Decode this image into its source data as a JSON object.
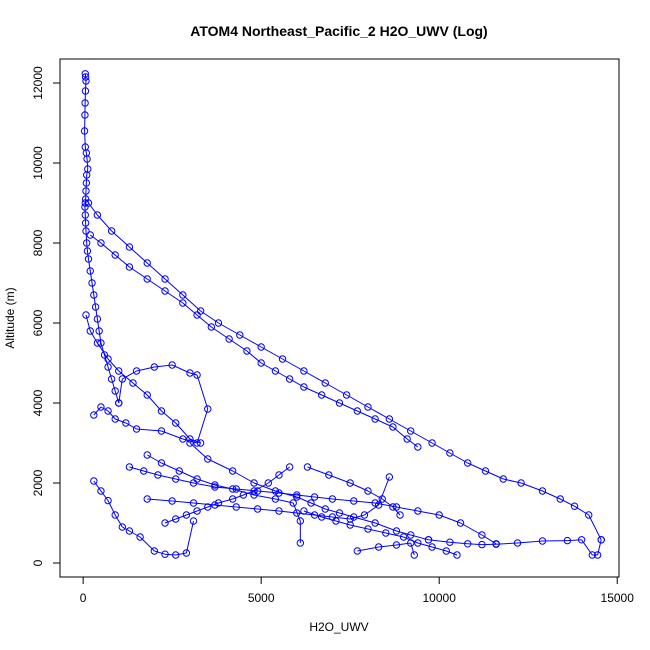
{
  "chart_data": {
    "type": "line",
    "title": "ATOM4 Northeast_Pacific_2 H2O_UWV (Log)",
    "xlabel": "H2O_UWV",
    "ylabel": "Altitude (m)",
    "xlim": [
      -650,
      15050
    ],
    "ylim": [
      -350,
      12600
    ],
    "xticks": [
      0,
      5000,
      10000,
      15000
    ],
    "xtick_labels": [
      "0",
      "5000",
      "10000",
      "15000"
    ],
    "yticks": [
      0,
      2000,
      4000,
      6000,
      8000,
      10000,
      12000
    ],
    "ytick_labels": [
      "0",
      "2000",
      "4000",
      "6000",
      "8000",
      "10000",
      "12000"
    ],
    "grid": false,
    "legend": "none",
    "marker": "open-circle",
    "line_color": "#0000ff",
    "series": [
      {
        "x": [
          60,
          70,
          80,
          65,
          55,
          50,
          40,
          60,
          90,
          110,
          130,
          100,
          90,
          80,
          70,
          60,
          50,
          60,
          70,
          80,
          100,
          120,
          150,
          200,
          250,
          300,
          350,
          400,
          450,
          500,
          600,
          700,
          800,
          900,
          1000
        ],
        "y": [
          12230,
          12150,
          12050,
          11800,
          11500,
          11200,
          10800,
          10400,
          10250,
          10100,
          9850,
          9700,
          9500,
          9300,
          9100,
          9000,
          8900,
          8700,
          8500,
          8300,
          8000,
          7800,
          7600,
          7300,
          7000,
          6700,
          6400,
          6100,
          5800,
          5500,
          5200,
          4900,
          4600,
          4300,
          4000
        ]
      },
      {
        "x": [
          1000,
          1100,
          1500,
          2000,
          2500,
          3000,
          3200,
          3500,
          3200,
          2800,
          2200,
          1500,
          1200,
          900,
          700,
          500,
          300
        ],
        "y": [
          4000,
          4600,
          4800,
          4900,
          4950,
          4750,
          4700,
          3850,
          3000,
          3100,
          3300,
          3350,
          3500,
          3600,
          3800,
          3900,
          3700
        ]
      },
      {
        "x": [
          300,
          500,
          700,
          900,
          1100,
          1300,
          1600,
          2000,
          2300,
          2600,
          2900,
          3100
        ],
        "y": [
          2050,
          1800,
          1560,
          1200,
          900,
          800,
          650,
          300,
          220,
          200,
          250,
          1050
        ]
      },
      {
        "x": [
          80,
          200,
          400,
          700,
          1000,
          1400,
          1800,
          2200,
          2600,
          3000,
          3300
        ],
        "y": [
          6200,
          5800,
          5500,
          5100,
          4800,
          4500,
          4200,
          3800,
          3500,
          3100,
          3000
        ]
      },
      {
        "x": [
          3000,
          3500,
          4200,
          4800,
          5400,
          6000,
          6400,
          6800,
          7200,
          7600,
          8200,
          8800,
          9200,
          9700
        ],
        "y": [
          3000,
          2600,
          2300,
          2000,
          1800,
          1650,
          1500,
          1350,
          1250,
          1150,
          1000,
          800,
          700,
          580
        ]
      },
      {
        "x": [
          9700,
          10300,
          10800,
          11200,
          11600,
          12200,
          12900,
          13600,
          14000,
          14300,
          14450,
          14550
        ],
        "y": [
          580,
          520,
          480,
          460,
          470,
          500,
          550,
          560,
          580,
          200,
          200,
          580
        ]
      },
      {
        "x": [
          200,
          500,
          900,
          1300,
          1800,
          2300,
          2800,
          3200,
          3600,
          4100,
          4600,
          5000,
          5400,
          5800,
          6200,
          6700,
          7200,
          7700,
          8200,
          8700,
          9100,
          9400
        ],
        "y": [
          8200,
          8000,
          7700,
          7400,
          7100,
          6800,
          6500,
          6200,
          5900,
          5600,
          5300,
          5000,
          4800,
          4600,
          4400,
          4200,
          4000,
          3800,
          3600,
          3400,
          3100,
          2900
        ]
      },
      {
        "x": [
          150,
          400,
          800,
          1300,
          1800,
          2300,
          2800,
          3300,
          3800,
          4400,
          5000,
          5600,
          6200,
          6800,
          7400,
          8000,
          8600,
          9200,
          9800,
          10300,
          10800,
          11300,
          11800,
          12300,
          12900,
          13400,
          13800,
          14200,
          14550
        ],
        "y": [
          9000,
          8700,
          8300,
          7900,
          7500,
          7100,
          6700,
          6300,
          6000,
          5700,
          5400,
          5100,
          4800,
          4500,
          4200,
          3900,
          3600,
          3300,
          3000,
          2750,
          2500,
          2300,
          2100,
          2000,
          1800,
          1600,
          1420,
          1200,
          580
        ]
      },
      {
        "x": [
          5800,
          5500,
          5200,
          4800,
          4500,
          4200,
          3800,
          3500,
          3200,
          2900,
          2600,
          2300
        ],
        "y": [
          2400,
          2200,
          2000,
          1800,
          1700,
          1600,
          1500,
          1400,
          1300,
          1200,
          1100,
          1000
        ]
      },
      {
        "x": [
          1300,
          1700,
          2100,
          2600,
          3100,
          3700,
          4300,
          4900,
          5500,
          6000,
          6500,
          7000,
          7600,
          8200,
          8800,
          9400,
          10000,
          10600,
          11200,
          11600
        ],
        "y": [
          2400,
          2300,
          2200,
          2100,
          2000,
          1900,
          1850,
          1800,
          1750,
          1700,
          1650,
          1600,
          1550,
          1500,
          1400,
          1300,
          1200,
          1000,
          700,
          480
        ]
      },
      {
        "x": [
          1800,
          2200,
          2700,
          3200,
          3700,
          4200,
          4800,
          5400,
          5900,
          6100,
          6100
        ],
        "y": [
          2700,
          2500,
          2300,
          2100,
          1950,
          1850,
          1700,
          1600,
          1500,
          1050,
          500
        ]
      },
      {
        "x": [
          6200,
          6700,
          7100,
          7500,
          8000,
          8500,
          9000,
          9400,
          9800,
          10200,
          10500
        ],
        "y": [
          1300,
          1150,
          1050,
          950,
          850,
          750,
          650,
          500,
          400,
          300,
          200
        ]
      },
      {
        "x": [
          7700,
          8300,
          8800,
          9200,
          9300
        ],
        "y": [
          300,
          400,
          450,
          500,
          200
        ]
      },
      {
        "x": [
          1800,
          2500,
          3100,
          3700,
          4300,
          4900,
          5500,
          6000,
          6500,
          7000,
          7500,
          7900,
          8300,
          8600
        ],
        "y": [
          1600,
          1550,
          1500,
          1450,
          1400,
          1350,
          1300,
          1250,
          1200,
          1150,
          1100,
          1200,
          1450,
          2150
        ]
      },
      {
        "x": [
          6300,
          6900,
          7500,
          8000,
          8400,
          8700,
          8900
        ],
        "y": [
          2400,
          2200,
          2000,
          1800,
          1600,
          1400,
          1200
        ]
      }
    ]
  }
}
